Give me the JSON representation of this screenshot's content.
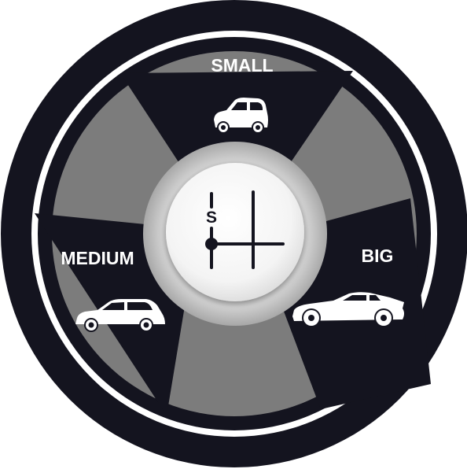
{
  "segments": [
    {
      "id": "small",
      "label": "SMALL",
      "icon": "small-car-icon"
    },
    {
      "id": "medium",
      "label": "MEDIUM",
      "icon": "hatchback-car-icon"
    },
    {
      "id": "big",
      "label": "BIG",
      "icon": "sports-car-icon"
    }
  ],
  "gear": {
    "letter": "S",
    "icon": "gear-shift-pattern-icon"
  },
  "colors": {
    "dark": "#14141f",
    "gray": "#7c7c7c",
    "ring": "#ffffff",
    "hub": "#f2f2f2"
  }
}
